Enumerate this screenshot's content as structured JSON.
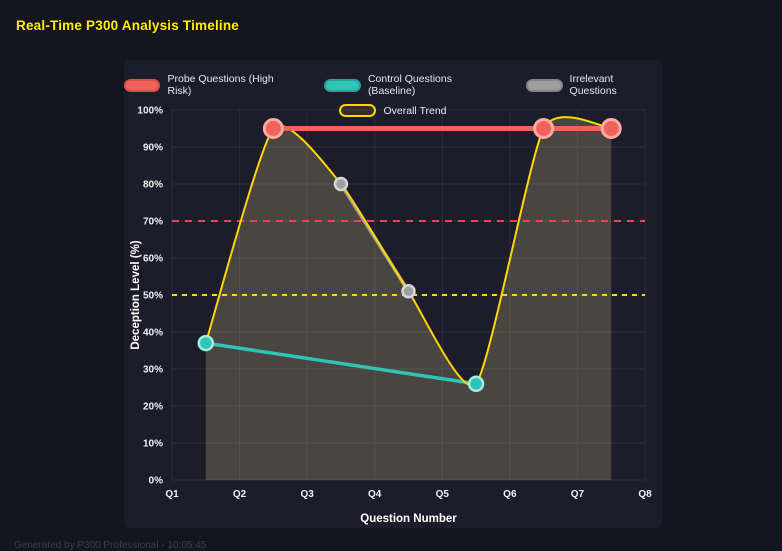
{
  "page": {
    "title": "Real-Time P300 Analysis Timeline",
    "footer": "Generated by P300 Professional - 10:05:45"
  },
  "chart_data": {
    "type": "line",
    "title": "Real-Time P300 Analysis Timeline",
    "xlabel": "Question Number",
    "ylabel": "Deception Level (%)",
    "xlim": [
      1,
      8
    ],
    "ylim": [
      0,
      100
    ],
    "grid": true,
    "legend_position": "top",
    "x_tick_values": [
      1,
      2,
      3,
      4,
      5,
      6,
      7,
      8
    ],
    "x_tick_labels": [
      "Q1",
      "Q2",
      "Q3",
      "Q4",
      "Q5",
      "Q6",
      "Q7",
      "Q8"
    ],
    "y_tick_values": [
      0,
      10,
      20,
      30,
      40,
      50,
      60,
      70,
      80,
      90,
      100
    ],
    "y_tick_labels": [
      "0%",
      "10%",
      "20%",
      "30%",
      "40%",
      "50%",
      "60%",
      "70%",
      "80%",
      "90%",
      "100%"
    ],
    "series": [
      {
        "name": "Probe Questions (High Risk)",
        "x": [
          2.5,
          6.5,
          7.5
        ],
        "y": [
          95,
          95,
          95
        ],
        "color": "#f2625d",
        "line_width": 5,
        "marker_radius": 9,
        "marker_stroke": "#ffa9a2",
        "swatch_fill": "#f2625d",
        "swatch_border": "#d94f4a",
        "smooth": false
      },
      {
        "name": "Control Questions (Baseline)",
        "x": [
          1.5,
          5.5
        ],
        "y": [
          37,
          26
        ],
        "color": "#2ec4b6",
        "line_width": 3.5,
        "marker_radius": 7,
        "marker_stroke": "#a5ece3",
        "swatch_fill": "#2ec4b6",
        "swatch_border": "#25a396",
        "smooth": false
      },
      {
        "name": "Irrelevant Questions",
        "x": [
          3.5,
          4.5
        ],
        "y": [
          80,
          51
        ],
        "color": "#9e9e9e",
        "line_width": 3.5,
        "marker_radius": 6,
        "marker_stroke": "#d3d6da",
        "swatch_fill": "#9e9e9e",
        "swatch_border": "#848484",
        "smooth": false
      },
      {
        "name": "Overall Trend",
        "x": [
          1.5,
          2.5,
          3.5,
          4.5,
          5.5,
          6.5,
          7.5
        ],
        "y": [
          37,
          95,
          80,
          51,
          26,
          95,
          95
        ],
        "color": "#ffd700",
        "line_width": 2,
        "marker_radius": 0,
        "fill": "rgba(235,218,140,0.22)",
        "swatch_fill": "rgba(255,215,0,0.10)",
        "swatch_border": "#ffd700",
        "smooth": true
      }
    ],
    "reference_lines": [
      {
        "y": 70,
        "color": "#ff3b5c",
        "dash": "7 6"
      },
      {
        "y": 50,
        "color": "#ffd700",
        "dash": "5 5"
      }
    ]
  }
}
